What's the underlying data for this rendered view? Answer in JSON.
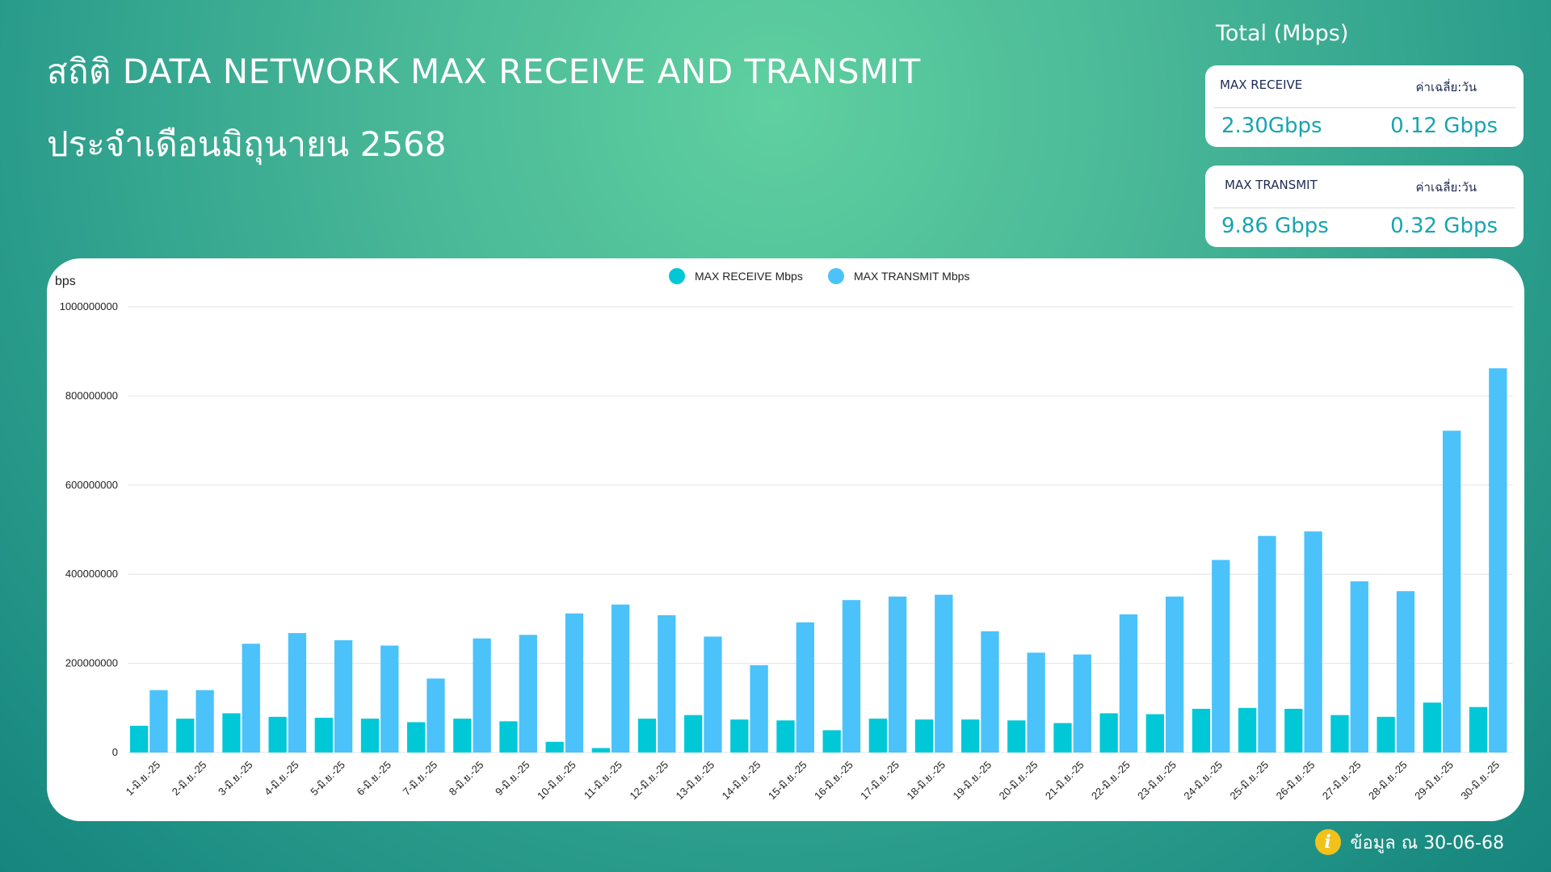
{
  "header": {
    "title": "สถิติ DATA NETWORK MAX RECEIVE AND TRANSMIT",
    "subtitle": "ประจำเดือนมิถุนายน 2568"
  },
  "totals": {
    "heading": "Total (Mbps)",
    "receive": {
      "label": "MAX RECEIVE",
      "avg_label": "ค่าเฉลี่ย:วัน",
      "value": "2.30Gbps",
      "avg_value": "0.12 Gbps"
    },
    "transmit": {
      "label": "MAX TRANSMIT",
      "avg_label": "ค่าเฉลี่ย:วัน",
      "value": "9.86 Gbps",
      "avg_value": "0.32 Gbps"
    }
  },
  "colors": {
    "receive": "#00c8d7",
    "transmit": "#4bc2fa"
  },
  "footer": {
    "icon": "info-icon",
    "text": "ข้อมูล ณ 30-06-68"
  },
  "chart_data": {
    "type": "bar",
    "ylabel": "bps",
    "ylim": [
      0,
      1000000000
    ],
    "yticks": [
      "0",
      "200000000",
      "400000000",
      "600000000",
      "800000000",
      "1000000000"
    ],
    "grid": true,
    "legend_position": "top",
    "categories": [
      "1-มิ.ย.-25",
      "2-มิ.ย.-25",
      "3-มิ.ย.-25",
      "4-มิ.ย.-25",
      "5-มิ.ย.-25",
      "6-มิ.ย.-25",
      "7-มิ.ย.-25",
      "8-มิ.ย.-25",
      "9-มิ.ย.-25",
      "10-มิ.ย.-25",
      "11-มิ.ย.-25",
      "12-มิ.ย.-25",
      "13-มิ.ย.-25",
      "14-มิ.ย.-25",
      "15-มิ.ย.-25",
      "16-มิ.ย.-25",
      "17-มิ.ย.-25",
      "18-มิ.ย.-25",
      "19-มิ.ย.-25",
      "20-มิ.ย.-25",
      "21-มิ.ย.-25",
      "22-มิ.ย.-25",
      "23-มิ.ย.-25",
      "24-มิ.ย.-25",
      "25-มิ.ย.-25",
      "26-มิ.ย.-25",
      "27-มิ.ย.-25",
      "28-มิ.ย.-25",
      "29-มิ.ย.-25",
      "30-มิ.ย.-25"
    ],
    "series": [
      {
        "name": "MAX RECEIVE Mbps",
        "values": [
          60000000,
          76000000,
          88000000,
          80000000,
          78000000,
          76000000,
          68000000,
          76000000,
          70000000,
          24000000,
          10000000,
          76000000,
          84000000,
          74000000,
          72000000,
          50000000,
          76000000,
          74000000,
          74000000,
          72000000,
          66000000,
          88000000,
          86000000,
          98000000,
          100000000,
          98000000,
          84000000,
          80000000,
          112000000,
          102000000
        ]
      },
      {
        "name": "MAX TRANSMIT Mbps",
        "values": [
          140000000,
          140000000,
          244000000,
          268000000,
          252000000,
          240000000,
          166000000,
          256000000,
          264000000,
          312000000,
          332000000,
          308000000,
          260000000,
          196000000,
          292000000,
          342000000,
          350000000,
          354000000,
          272000000,
          224000000,
          220000000,
          310000000,
          350000000,
          432000000,
          486000000,
          496000000,
          384000000,
          362000000,
          722000000,
          862000000
        ]
      }
    ]
  }
}
